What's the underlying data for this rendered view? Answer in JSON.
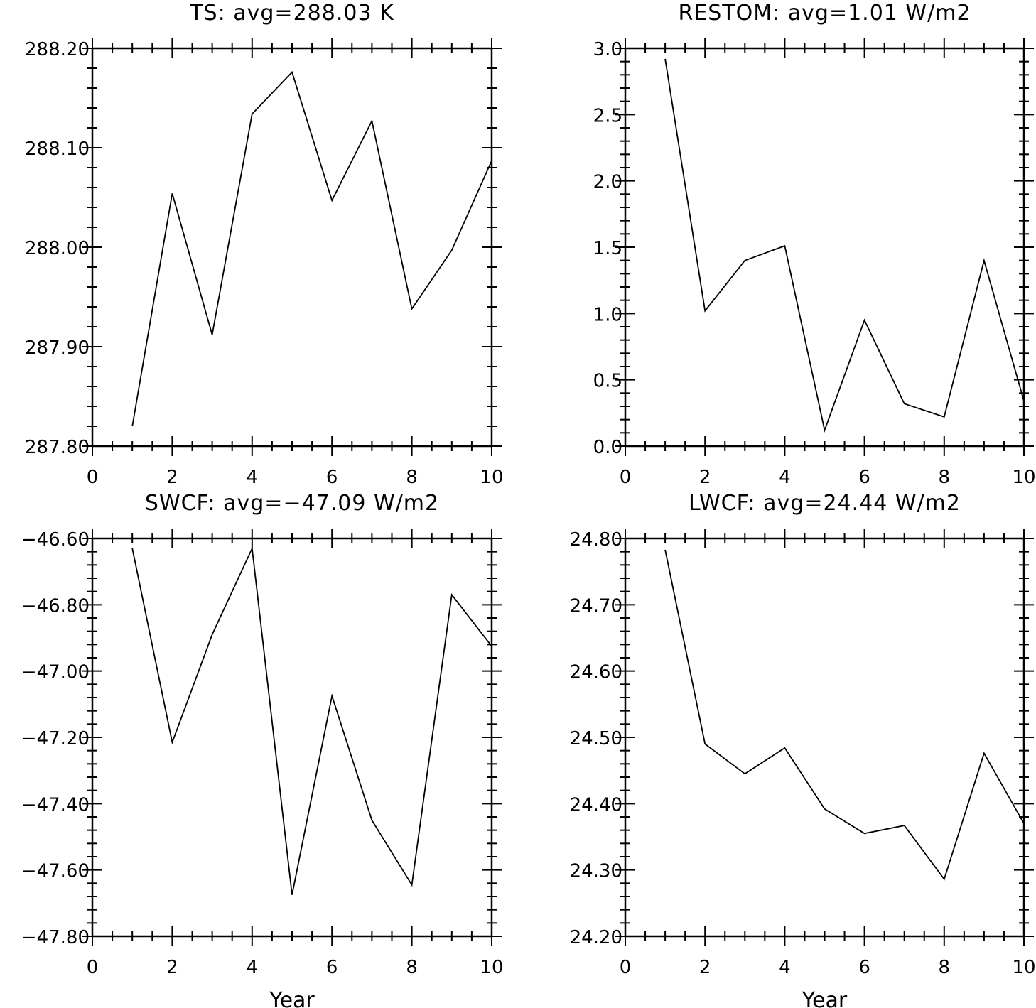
{
  "chart_data": [
    {
      "type": "line",
      "title": "TS: avg=288.03 K",
      "xlabel": "",
      "ylabel": "",
      "x": [
        1,
        2,
        3,
        4,
        5,
        6,
        7,
        8,
        9,
        10
      ],
      "series": [
        {
          "values": [
            287.82,
            288.054,
            287.912,
            288.134,
            288.176,
            288.047,
            288.127,
            287.938,
            287.997,
            288.087
          ]
        }
      ],
      "xlim": [
        0,
        10
      ],
      "ylim": [
        287.8,
        288.2
      ],
      "xticks": [
        "0",
        "2",
        "4",
        "6",
        "8",
        "10"
      ],
      "yticks": [
        "287.80",
        "287.90",
        "288.00",
        "288.10",
        "288.20"
      ],
      "grid": false
    },
    {
      "type": "line",
      "title": "RESTOM: avg=1.01 W/m2",
      "xlabel": "",
      "ylabel": "",
      "x": [
        1,
        2,
        3,
        4,
        5,
        6,
        7,
        8,
        9,
        10
      ],
      "series": [
        {
          "values": [
            2.92,
            1.02,
            1.4,
            1.51,
            0.12,
            0.95,
            0.32,
            0.22,
            1.4,
            0.34
          ]
        }
      ],
      "xlim": [
        0,
        10
      ],
      "ylim": [
        0,
        3
      ],
      "xticks": [
        "0",
        "2",
        "4",
        "6",
        "8",
        "10"
      ],
      "yticks": [
        "0.0",
        "0.5",
        "1.0",
        "1.5",
        "2.0",
        "2.5",
        "3.0"
      ],
      "grid": false
    },
    {
      "type": "line",
      "title": "SWCF: avg=−47.09 W/m2",
      "xlabel": "Year",
      "ylabel": "",
      "x": [
        1,
        2,
        3,
        4,
        5,
        6,
        7,
        8,
        9,
        10
      ],
      "series": [
        {
          "values": [
            -46.63,
            -47.215,
            -46.89,
            -46.63,
            -47.675,
            -47.075,
            -47.45,
            -47.645,
            -46.77,
            -46.925
          ]
        }
      ],
      "xlim": [
        0,
        10
      ],
      "ylim": [
        -47.8,
        -46.6
      ],
      "xticks": [
        "0",
        "2",
        "4",
        "6",
        "8",
        "10"
      ],
      "yticks": [
        "−47.80",
        "−47.60",
        "−47.40",
        "−47.20",
        "−47.00",
        "−46.80",
        "−46.60"
      ],
      "grid": false
    },
    {
      "type": "line",
      "title": "LWCF: avg=24.44 W/m2",
      "xlabel": "Year",
      "ylabel": "",
      "x": [
        1,
        2,
        3,
        4,
        5,
        6,
        7,
        8,
        9,
        10
      ],
      "series": [
        {
          "values": [
            24.783,
            24.49,
            24.445,
            24.484,
            24.392,
            24.355,
            24.367,
            24.286,
            24.476,
            24.37
          ]
        }
      ],
      "xlim": [
        0,
        10
      ],
      "ylim": [
        24.2,
        24.8
      ],
      "xticks": [
        "0",
        "2",
        "4",
        "6",
        "8",
        "10"
      ],
      "yticks": [
        "24.20",
        "24.30",
        "24.40",
        "24.50",
        "24.60",
        "24.70",
        "24.80"
      ],
      "grid": false
    }
  ]
}
